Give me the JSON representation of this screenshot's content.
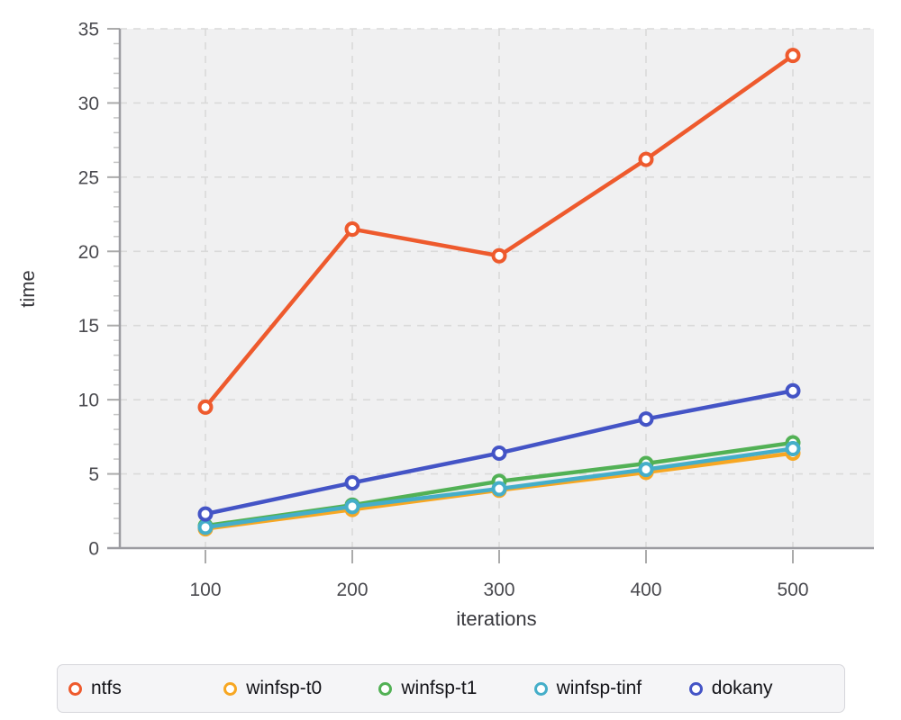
{
  "chart_data": {
    "type": "line",
    "x": [
      100,
      200,
      300,
      400,
      500
    ],
    "x_ticks": [
      100,
      200,
      300,
      400,
      500
    ],
    "y_ticks": [
      0,
      5,
      10,
      15,
      20,
      25,
      30,
      35
    ],
    "ylim": [
      0,
      35
    ],
    "y_major_step": 5,
    "y_minor_step": 1,
    "grid": true,
    "legend_position": "bottom",
    "xlabel": "iterations",
    "ylabel": "time",
    "series": [
      {
        "name": "ntfs",
        "color": "#EE5A2D",
        "values": [
          9.5,
          21.5,
          19.7,
          26.2,
          33.2
        ]
      },
      {
        "name": "winfsp-t0",
        "color": "#F7A723",
        "values": [
          1.3,
          2.6,
          3.9,
          5.1,
          6.4
        ]
      },
      {
        "name": "winfsp-t1",
        "color": "#52B155",
        "values": [
          1.5,
          2.9,
          4.5,
          5.7,
          7.1
        ]
      },
      {
        "name": "winfsp-tinf",
        "color": "#45AEC9",
        "values": [
          1.4,
          2.8,
          4.0,
          5.3,
          6.7
        ]
      },
      {
        "name": "dokany",
        "color": "#4454C6",
        "values": [
          2.3,
          4.4,
          6.4,
          8.7,
          10.6
        ]
      }
    ],
    "style_colors": {
      "plot_background": "#f0f0f1",
      "gridline": "#d9d9d9",
      "axis_line": "#9c9ca1",
      "major_tick": "#ababab",
      "minor_tick": "#c6c6c6"
    }
  }
}
